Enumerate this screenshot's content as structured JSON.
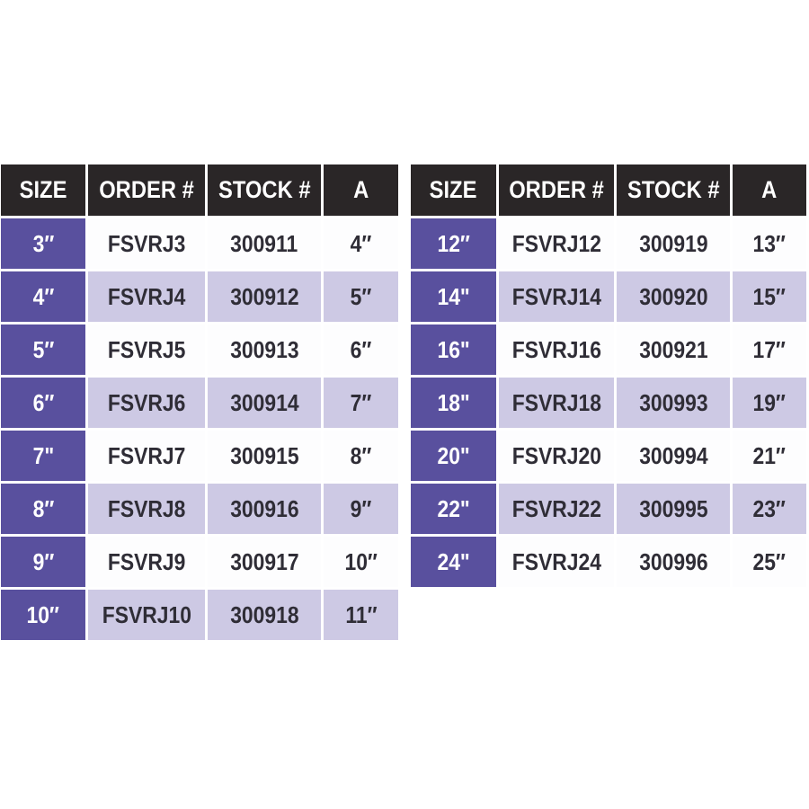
{
  "colors": {
    "header_bg": "#2a2627",
    "size_cell_purple": "#59509e",
    "row_lavender": "#cdc9e4",
    "row_white": "#fdfdfe",
    "text_dark": "#2f2d36",
    "text_light": "#ffffff"
  },
  "tables": [
    {
      "name": "left-spec-table",
      "headers": [
        "SIZE",
        "ORDER #",
        "STOCK #",
        "A"
      ],
      "rows": [
        [
          "3″",
          "FSVRJ3",
          "300911",
          "4″"
        ],
        [
          "4″",
          "FSVRJ4",
          "300912",
          "5″"
        ],
        [
          "5″",
          "FSVRJ5",
          "300913",
          "6″"
        ],
        [
          "6″",
          "FSVRJ6",
          "300914",
          "7″"
        ],
        [
          "7\"",
          "FSVRJ7",
          "300915",
          "8″"
        ],
        [
          "8″",
          "FSVRJ8",
          "300916",
          "9″"
        ],
        [
          "9″",
          "FSVRJ9",
          "300917",
          "10″"
        ],
        [
          "10″",
          "FSVRJ10",
          "300918",
          "11″"
        ]
      ]
    },
    {
      "name": "right-spec-table",
      "headers": [
        "SIZE",
        "ORDER #",
        "STOCK #",
        "A"
      ],
      "rows": [
        [
          "12″",
          "FSVRJ12",
          "300919",
          "13″"
        ],
        [
          "14\"",
          "FSVRJ14",
          "300920",
          "15″"
        ],
        [
          "16\"",
          "FSVRJ16",
          "300921",
          "17″"
        ],
        [
          "18\"",
          "FSVRJ18",
          "300993",
          "19″"
        ],
        [
          "20\"",
          "FSVRJ20",
          "300994",
          "21″"
        ],
        [
          "22\"",
          "FSVRJ22",
          "300995",
          "23″"
        ],
        [
          "24\"",
          "FSVRJ24",
          "300996",
          "25″"
        ]
      ]
    }
  ]
}
